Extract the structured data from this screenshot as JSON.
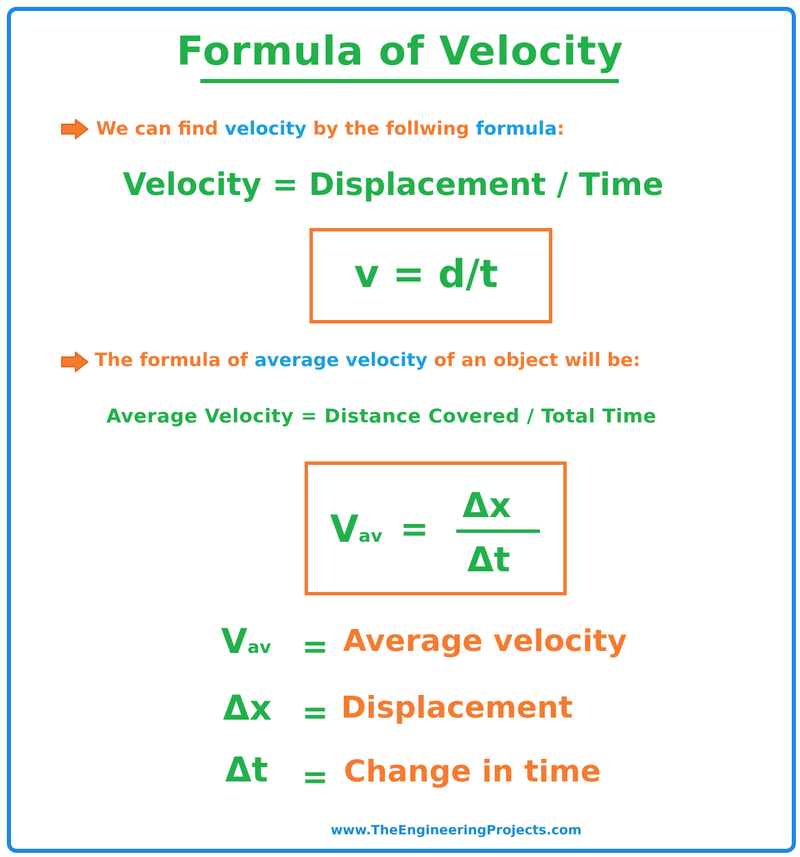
{
  "title": "Formula of Velocity",
  "bullet1": {
    "part1": "We can find ",
    "part2": "velocity",
    "part3": " by the follwing ",
    "part4": "formula",
    "part5": ":"
  },
  "formula1_words": "Velocity = Displacement / Time",
  "formula1_box": "v = d/t",
  "bullet2": {
    "part1": "The formula of ",
    "part2": "average velocity",
    "part3": " of an object will be:"
  },
  "formula2_words": "Average Velocity = Distance Covered / Total Time",
  "formula2_box": {
    "lhs_main": "V",
    "lhs_sub": "av",
    "equals": "=",
    "numerator": "Δx",
    "denominator": "Δt"
  },
  "definitions": [
    {
      "symbol": "V",
      "subscript": "av",
      "equals": "=",
      "meaning": "Average velocity"
    },
    {
      "symbol": "Δx",
      "subscript": "",
      "equals": "=",
      "meaning": "Displacement"
    },
    {
      "symbol": "Δt",
      "subscript": "",
      "equals": "=",
      "meaning": "Change in time"
    }
  ],
  "footer": "www.TheEngineeringProjects.com",
  "colors": {
    "green": "#22b04b",
    "orange": "#f47b30",
    "blue": "#1a9ee0",
    "frame": "#1e88e5"
  }
}
